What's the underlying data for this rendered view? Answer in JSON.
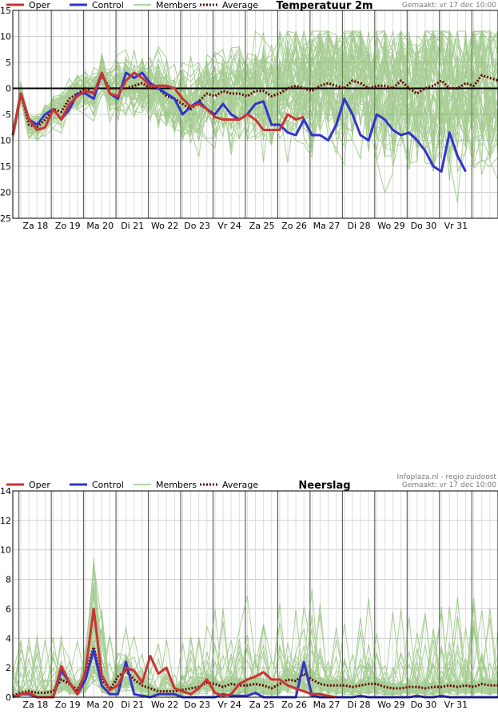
{
  "legend": {
    "oper": "Oper",
    "control": "Control",
    "members": "Members",
    "average": "Average"
  },
  "colors": {
    "oper": "#cc3333",
    "control": "#3333cc",
    "members": "#66aa44",
    "average": "#660000",
    "grid": "#cccccc",
    "daygrid": "#444444"
  },
  "meta": {
    "generated": "Gemaakt: vr 17 dec 10:00",
    "source": "Infoplaza.nl - regio zuidoost"
  },
  "chart_data": [
    {
      "type": "line",
      "title": "Temperatuur 2m",
      "ylim": [
        -25,
        15
      ],
      "yticks": [
        15,
        10,
        5,
        0,
        -5,
        -10,
        -15,
        -20,
        -25
      ],
      "yticklabels": [
        "15",
        "10",
        "5",
        "0",
        "-5",
        "-10",
        "-15",
        "-20",
        "-25"
      ],
      "xlim": [
        0,
        15
      ],
      "day_boundaries": [
        0.19,
        1.19,
        2.19,
        3.19,
        4.19,
        5.19,
        6.19,
        7.19,
        8.19,
        9.19,
        10.19,
        11.19,
        12.19,
        13.19,
        14.19
      ],
      "xticks": [
        0.7,
        1.7,
        2.7,
        3.7,
        4.7,
        5.7,
        6.7,
        7.7,
        8.7,
        9.7,
        10.7,
        11.7,
        12.7,
        13.7,
        14.7
      ],
      "xticklabels": [
        "Za 18",
        "Zo 19",
        "Ma 20",
        "Di 21",
        "Wo 22",
        "Do 23",
        "Vr 24",
        "Za 25",
        "Zo 26",
        "Ma 27",
        "Di 28",
        "Wo 29",
        "Do 30",
        "Vr 31",
        ""
      ],
      "series": [
        {
          "name": "Oper",
          "x": [
            0,
            0.25,
            0.5,
            0.75,
            1.0,
            1.25,
            1.5,
            1.75,
            2.0,
            2.25,
            2.5,
            2.75,
            3.0,
            3.25,
            3.5,
            3.75,
            4.0,
            4.25,
            4.5,
            4.75,
            5.0,
            5.25,
            5.5,
            5.75,
            6.0,
            6.25,
            6.5,
            6.75,
            7.0,
            7.25,
            7.5,
            7.75,
            8.0,
            8.25,
            8.5,
            8.75,
            9.0,
            9.25,
            9.5,
            9.75,
            10.0
          ],
          "values": [
            -9,
            -1,
            -6,
            -8,
            -7.5,
            -4,
            -6,
            -3,
            -1.5,
            -0.5,
            -1,
            3,
            -1,
            -1.5,
            1.5,
            3,
            2,
            0.5,
            0.5,
            0.5,
            0,
            -2,
            -3.5,
            -3,
            -4,
            -5.5,
            -6,
            -6,
            -6,
            -5,
            -6,
            -8,
            -8,
            -8,
            -5,
            -6,
            -5.5,
            null,
            null,
            null,
            null
          ]
        },
        {
          "name": "Control",
          "x": [
            0,
            0.25,
            0.5,
            0.75,
            1.0,
            1.25,
            1.5,
            1.75,
            2.0,
            2.25,
            2.5,
            2.75,
            3.0,
            3.25,
            3.5,
            3.75,
            4.0,
            4.25,
            4.5,
            4.75,
            5.0,
            5.25,
            5.5,
            5.75,
            6.0,
            6.25,
            6.5,
            6.75,
            7.0,
            7.25,
            7.5,
            7.75,
            8.0,
            8.25,
            8.5,
            8.75,
            9.0,
            9.25,
            9.5,
            9.75,
            10.0,
            10.25,
            10.5,
            10.75,
            11.0,
            11.25,
            11.5,
            11.75,
            12.0,
            12.25,
            12.5,
            12.75,
            13.0,
            13.25,
            13.5,
            13.75,
            14.0,
            14.25,
            14.5,
            14.75,
            15.0
          ],
          "values": [
            -9,
            -1,
            -6,
            -7,
            -5,
            -4,
            -6,
            -4,
            -1,
            -1,
            -2,
            3,
            -1,
            -2,
            3,
            2,
            3,
            1,
            0,
            -1,
            -2,
            -5,
            -3.5,
            -2.5,
            -4,
            -5,
            -3,
            -5,
            -6,
            -5,
            -3,
            -2.5,
            -7,
            -7,
            -8.5,
            -9,
            -6,
            -9,
            -9,
            -10,
            -7,
            -2,
            -5,
            -9,
            -10,
            -5,
            -6,
            -8,
            -9,
            -8.5,
            -10,
            -12,
            -15,
            -16,
            -8.5,
            -13,
            -16,
            null,
            null,
            null,
            null
          ]
        },
        {
          "name": "Average",
          "x": [
            0,
            0.25,
            0.5,
            0.75,
            1.0,
            1.25,
            1.5,
            1.75,
            2.0,
            2.25,
            2.5,
            2.75,
            3.0,
            3.25,
            3.5,
            3.75,
            4.0,
            4.25,
            4.5,
            4.75,
            5.0,
            5.25,
            5.5,
            5.75,
            6.0,
            6.25,
            6.5,
            6.75,
            7.0,
            7.25,
            7.5,
            7.75,
            8.0,
            8.25,
            8.5,
            8.75,
            9.0,
            9.25,
            9.5,
            9.75,
            10.0,
            10.25,
            10.5,
            10.75,
            11.0,
            11.25,
            11.5,
            11.75,
            12.0,
            12.25,
            12.5,
            12.75,
            13.0,
            13.25,
            13.5,
            13.75,
            14.0,
            14.25,
            14.5,
            14.75,
            15.0
          ],
          "values": [
            -9,
            -1,
            -7,
            -7.5,
            -6,
            -4,
            -4.5,
            -2,
            -1,
            0,
            -1,
            2.5,
            0,
            0,
            0,
            0.5,
            1,
            0,
            0,
            -1.5,
            -2,
            -3,
            -4,
            -2.5,
            -1,
            -1.5,
            -0.5,
            -1,
            -1,
            -1.5,
            -0.5,
            -0.5,
            -1.5,
            -1,
            0,
            0.5,
            0,
            -0.5,
            0.5,
            1,
            0.5,
            0,
            1.5,
            1,
            0,
            0.5,
            0.5,
            0,
            1.5,
            0,
            -1,
            0,
            0.5,
            1.5,
            0,
            0,
            1,
            0.5,
            2.5,
            2,
            1.5
          ]
        }
      ],
      "members_count": 50
    },
    {
      "type": "line",
      "title": "Neerslag",
      "ylim": [
        0,
        14
      ],
      "yticks": [
        14,
        12,
        10,
        8,
        6,
        4,
        2,
        0
      ],
      "yticklabels": [
        "14",
        "12",
        "10",
        "8",
        "6",
        "4",
        "2",
        "0"
      ],
      "xlim": [
        0,
        15
      ],
      "day_boundaries": [
        0.19,
        1.19,
        2.19,
        3.19,
        4.19,
        5.19,
        6.19,
        7.19,
        8.19,
        9.19,
        10.19,
        11.19,
        12.19,
        13.19,
        14.19
      ],
      "xticks": [
        0.7,
        1.7,
        2.7,
        3.7,
        4.7,
        5.7,
        6.7,
        7.7,
        8.7,
        9.7,
        10.7,
        11.7,
        12.7,
        13.7,
        14.7
      ],
      "xticklabels": [
        "Za 18",
        "Zo 19",
        "Ma 20",
        "Di 21",
        "Wo 22",
        "Do 23",
        "Vr 24",
        "Za 25",
        "Zo 26",
        "Ma 27",
        "Di 28",
        "Wo 29",
        "Do 30",
        "Vr 31",
        ""
      ],
      "series": [
        {
          "name": "Oper",
          "x": [
            0,
            0.25,
            0.5,
            0.75,
            1.0,
            1.25,
            1.5,
            1.75,
            2.0,
            2.25,
            2.5,
            2.75,
            3.0,
            3.25,
            3.5,
            3.75,
            4.0,
            4.25,
            4.5,
            4.75,
            5.0,
            5.25,
            5.5,
            5.75,
            6.0,
            6.25,
            6.5,
            6.75,
            7.0,
            7.25,
            7.5,
            7.75,
            8.0,
            8.25,
            8.5,
            8.75,
            9.0,
            9.25,
            9.5,
            9.75,
            10.0
          ],
          "values": [
            0,
            0.2,
            0.3,
            0,
            0,
            0,
            2.1,
            1,
            0.2,
            1.8,
            6,
            1.5,
            0.5,
            0.8,
            2,
            1.8,
            1,
            2.8,
            1.6,
            2,
            0.6,
            0.4,
            0.2,
            0.6,
            1.2,
            0.3,
            0.1,
            0.2,
            0.9,
            1.2,
            1.4,
            1.7,
            1.2,
            1.2,
            0.8,
            0.6,
            0.4,
            0.2,
            0.2,
            0.1,
            0
          ]
        },
        {
          "name": "Control",
          "x": [
            0,
            0.25,
            0.5,
            0.75,
            1.0,
            1.25,
            1.5,
            1.75,
            2.0,
            2.25,
            2.5,
            2.75,
            3.0,
            3.25,
            3.5,
            3.75,
            4.0,
            4.25,
            4.5,
            4.75,
            5.0,
            5.25,
            5.5,
            5.75,
            6.0,
            6.25,
            6.5,
            6.75,
            7.0,
            7.25,
            7.5,
            7.75,
            8.0,
            8.25,
            8.5,
            8.75,
            9.0,
            9.25,
            9.5,
            9.75,
            10.0,
            10.25,
            10.5,
            10.75,
            11.0,
            11.25,
            11.5,
            11.75,
            12.0,
            12.25,
            12.5,
            12.75,
            13.0,
            13.25,
            13.5,
            13.75,
            14.0,
            14.25,
            14.5,
            14.75,
            15.0
          ],
          "values": [
            0,
            0.2,
            0.2,
            0,
            0,
            0,
            1.8,
            1,
            0.2,
            1.2,
            3.2,
            0.8,
            0.2,
            0.2,
            2.4,
            0.2,
            0.1,
            0,
            0.2,
            0.2,
            0.2,
            0,
            0,
            0,
            0,
            0,
            0.2,
            0.1,
            0.1,
            0.1,
            0.3,
            0,
            0,
            0,
            0,
            0,
            2.4,
            0.1,
            0,
            0,
            0,
            0,
            0,
            0.1,
            0,
            0,
            0,
            0,
            0,
            0,
            0.1,
            0,
            0,
            0.1,
            0,
            0,
            0,
            0,
            0,
            0,
            0
          ]
        },
        {
          "name": "Average",
          "x": [
            0,
            0.25,
            0.5,
            0.75,
            1.0,
            1.25,
            1.5,
            1.75,
            2.0,
            2.25,
            2.5,
            2.75,
            3.0,
            3.25,
            3.5,
            3.75,
            4.0,
            4.25,
            4.5,
            4.75,
            5.0,
            5.25,
            5.5,
            5.75,
            6.0,
            6.25,
            6.5,
            6.75,
            7.0,
            7.25,
            7.5,
            7.75,
            8.0,
            8.25,
            8.5,
            8.75,
            9.0,
            9.25,
            9.5,
            9.75,
            10.0,
            10.25,
            10.5,
            10.75,
            11.0,
            11.25,
            11.5,
            11.75,
            12.0,
            12.25,
            12.5,
            12.75,
            13.0,
            13.25,
            13.5,
            13.75,
            14.0,
            14.25,
            14.5,
            14.75,
            15.0
          ],
          "values": [
            0.1,
            0.3,
            0.4,
            0.3,
            0.3,
            0.4,
            1.2,
            0.9,
            0.5,
            1.6,
            3.4,
            1.2,
            0.5,
            1.4,
            1.8,
            1.2,
            0.8,
            0.6,
            0.4,
            0.4,
            0.4,
            0.5,
            0.6,
            0.7,
            1.0,
            0.9,
            0.7,
            0.9,
            0.8,
            0.8,
            0.9,
            0.8,
            0.6,
            0.9,
            1.2,
            1.1,
            1.6,
            1.2,
            0.9,
            0.8,
            0.8,
            0.8,
            0.7,
            0.8,
            0.9,
            0.9,
            0.7,
            0.6,
            0.6,
            0.7,
            0.7,
            0.6,
            0.7,
            0.7,
            0.8,
            0.7,
            0.8,
            0.7,
            0.9,
            0.8,
            0.8
          ]
        }
      ],
      "members_count": 50
    }
  ]
}
